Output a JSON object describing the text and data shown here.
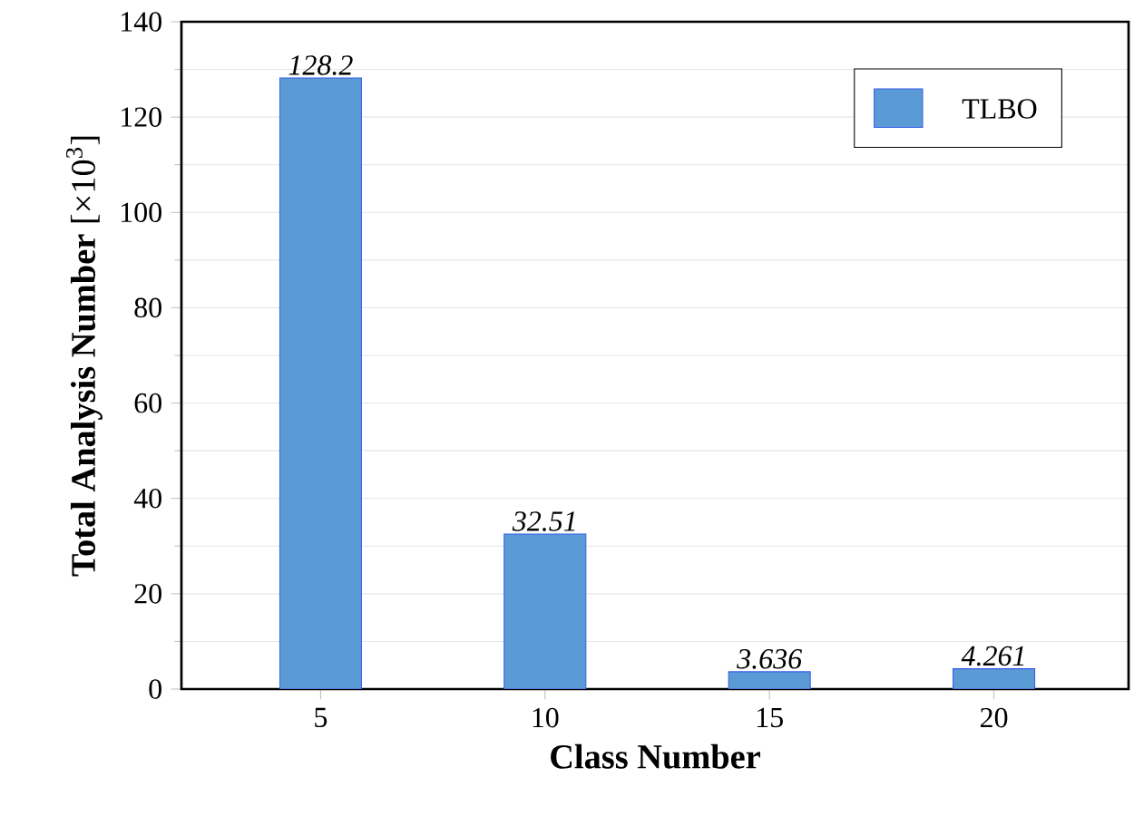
{
  "chart_data": {
    "type": "bar",
    "xlabel": "Class Number",
    "ylabel": "**Total Analysis Number** [×10$^{3}$]",
    "categories": [
      "5",
      "10",
      "15",
      "20"
    ],
    "series": [
      {
        "name": "TLBO",
        "color": "#5b9bd5",
        "values": [
          128.2,
          32.51,
          3.636,
          4.261
        ]
      }
    ],
    "ylim": [
      0,
      140
    ],
    "yticks": [
      0,
      20,
      40,
      60,
      80,
      100,
      120,
      140
    ],
    "grid": "y",
    "legend": "top right",
    "data_labels": true
  }
}
